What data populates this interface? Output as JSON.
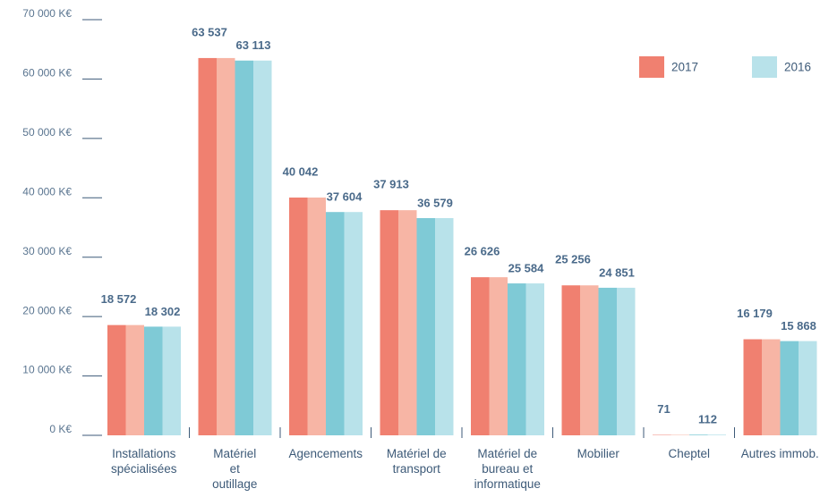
{
  "chart_data": {
    "type": "bar",
    "categories": [
      "Installations\nspécialisées",
      "Matériel\net\noutillage",
      "Agencements",
      "Matériel de\ntransport",
      "Matériel de\nbureau et\ninformatique",
      "Mobilier",
      "Cheptel",
      "Autres immob."
    ],
    "series": [
      {
        "name": "2017",
        "color": "#f08070",
        "values": [
          18572,
          63537,
          40042,
          37913,
          26626,
          25256,
          71,
          16179
        ],
        "value_labels": [
          "18 572",
          "63 537",
          "40 042",
          "37 913",
          "26 626",
          "25 256",
          "71",
          "16 179"
        ]
      },
      {
        "name": "2016",
        "color": "#b8e2ea",
        "values": [
          18302,
          63113,
          37604,
          36579,
          25584,
          24851,
          112,
          15868
        ],
        "value_labels": [
          "18 302",
          "63 113",
          "37 604",
          "36 579",
          "25 584",
          "24 851",
          "112",
          "15 868"
        ]
      }
    ],
    "ylim": [
      0,
      70000
    ],
    "yticks": [
      {
        "value": 0,
        "label": "0 K€"
      },
      {
        "value": 10000,
        "label": "10 000 K€"
      },
      {
        "value": 20000,
        "label": "20 000 K€"
      },
      {
        "value": 30000,
        "label": "30 000 K€"
      },
      {
        "value": 40000,
        "label": "40 000 K€"
      },
      {
        "value": 50000,
        "label": "50 000 K€"
      },
      {
        "value": 60000,
        "label": "60 000 K€"
      },
      {
        "value": 70000,
        "label": "70 000 K€"
      }
    ],
    "legend": "top-right"
  }
}
